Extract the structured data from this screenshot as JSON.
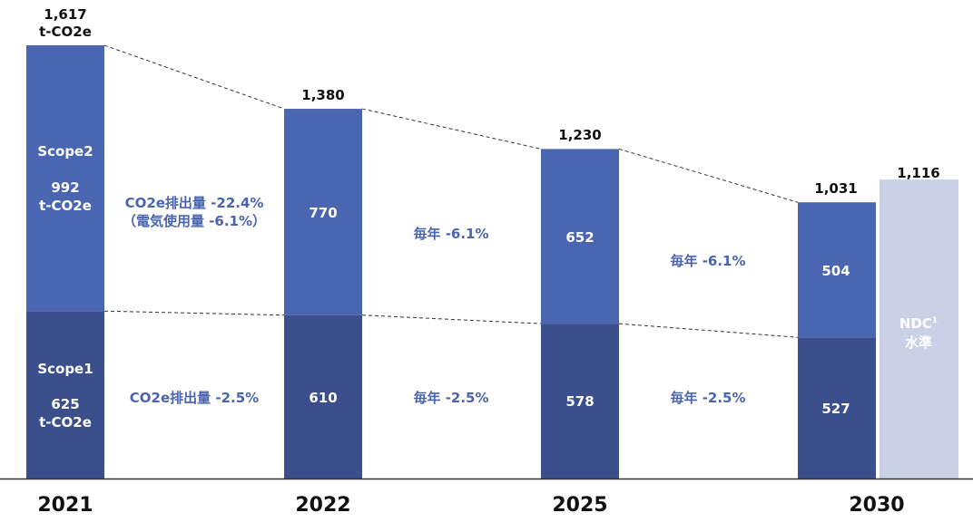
{
  "chart_data": {
    "type": "bar",
    "stacked": true,
    "title": "",
    "unit": "t-CO2e",
    "categories": [
      "2021",
      "2022",
      "2025",
      "2030"
    ],
    "series": [
      {
        "name": "Scope1",
        "values": [
          625,
          610,
          578,
          527
        ]
      },
      {
        "name": "Scope2",
        "values": [
          992,
          770,
          652,
          504
        ]
      }
    ],
    "totals": [
      "1,617",
      "1,380",
      "1,230",
      "1,031"
    ],
    "first_total_unit": "t-CO2e",
    "ndc": {
      "value": 1116,
      "label": "1,116",
      "text_line1": "NDC",
      "superscript": "1",
      "text_line2": "水準"
    },
    "inside_labels": {
      "scope2_first": [
        "Scope2",
        "992",
        "t-CO2e"
      ],
      "scope1_first": [
        "Scope1",
        "625",
        "t-CO2e"
      ],
      "scope2_rest": [
        "770",
        "652",
        "504"
      ],
      "scope1_rest": [
        "610",
        "578",
        "527"
      ]
    },
    "rate_labels": {
      "scope2": [
        [
          "CO2e排出量 -22.4%",
          "（電気使用量 -6.1%）"
        ],
        [
          "毎年 -6.1%"
        ],
        [
          "毎年 -6.1%"
        ]
      ],
      "scope1": [
        "CO2e排出量 -2.5%",
        "毎年 -2.5%",
        "毎年 -2.5%"
      ]
    },
    "ylim": [
      0,
      1617
    ],
    "colors": {
      "scope1": "#3a4f8c",
      "scope2": "#4a66b0",
      "ndc": "#c8d1e6",
      "rate_text": "#4a64b0"
    }
  }
}
